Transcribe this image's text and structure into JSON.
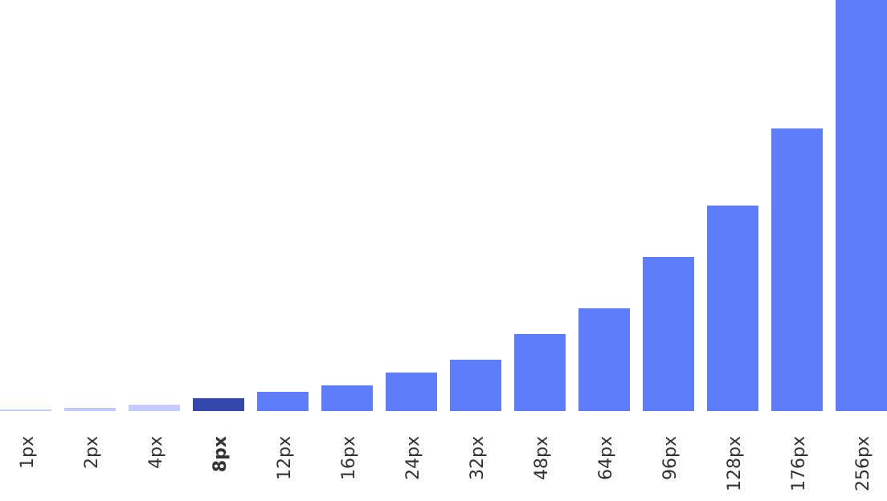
{
  "chart_data": {
    "type": "bar",
    "categories": [
      "1px",
      "2px",
      "4px",
      "8px",
      "12px",
      "16px",
      "24px",
      "32px",
      "48px",
      "64px",
      "96px",
      "128px",
      "176px",
      "256px"
    ],
    "values": [
      1,
      2,
      4,
      8,
      12,
      16,
      24,
      32,
      48,
      64,
      96,
      128,
      176,
      256
    ],
    "colors": [
      "#c2cbfb",
      "#c2cbfb",
      "#c2cbfb",
      "#3347ad",
      "#5f7cf9",
      "#5f7cf9",
      "#5f7cf9",
      "#5f7cf9",
      "#5f7cf9",
      "#5f7cf9",
      "#5f7cf9",
      "#5f7cf9",
      "#5f7cf9",
      "#5f7cf9"
    ],
    "highlight": 3,
    "ylim": [
      0,
      256
    ]
  }
}
